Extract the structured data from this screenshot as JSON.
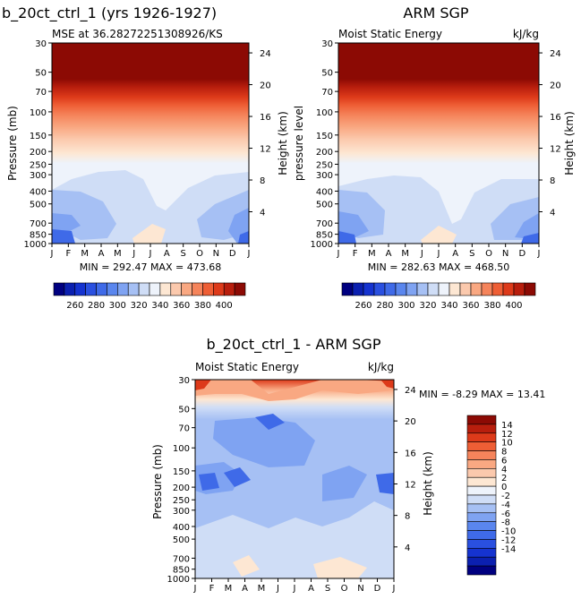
{
  "panels": [
    {
      "title": "b_20ct_ctrl_1 (yrs 1926-1927)",
      "left_label": "MSE at 36.28272251308926/KS",
      "right_label": "",
      "y_left_title": "Pressure (mb)",
      "y_right_title": "Height (km)",
      "minmax": "MIN = 292.47 MAX = 473.68"
    },
    {
      "title": "ARM SGP",
      "left_label": "Moist Static Energy",
      "right_label": "kJ/kg",
      "y_left_title": "pressure level",
      "y_right_title": "Height (km)",
      "minmax": "MIN = 282.63 MAX = 468.50"
    },
    {
      "title": "b_20ct_ctrl_1 - ARM SGP",
      "left_label": "Moist Static Energy",
      "right_label": "kJ/kg",
      "y_left_title": "Pressure (mb)",
      "y_right_title": "Height (km)",
      "minmax": "MIN =  -8.29 MAX =  13.41"
    }
  ],
  "colors": {
    "bluered": [
      "#000080",
      "#0b20b0",
      "#1533d0",
      "#2a50e0",
      "#3f6ae8",
      "#5a86ee",
      "#7fa3f2",
      "#a6c0f4",
      "#cfddf6",
      "#eef3fb",
      "#fde7d3",
      "#fbc9ad",
      "#f9a882",
      "#f5845b",
      "#ee5e35",
      "#dd3a1a",
      "#b81e0d",
      "#8c0a04"
    ]
  },
  "chart_data": [
    {
      "type": "heatmap",
      "title": "b_20ct_ctrl_1 (yrs 1926-1927)",
      "subtitle": "MSE at 36.28272251308926/KS",
      "xlabel": "",
      "ylabel": "Pressure (mb)",
      "ylabel_right": "Height (km)",
      "x_ticks": [
        "J",
        "F",
        "M",
        "A",
        "M",
        "J",
        "J",
        "A",
        "S",
        "O",
        "N",
        "D",
        "J"
      ],
      "y_ticks": [
        "30",
        "50",
        "70",
        "100",
        "150",
        "200",
        "250",
        "300",
        "400",
        "500",
        "700",
        "850",
        "1000"
      ],
      "y_right_ticks": [
        "24",
        "20",
        "16",
        "12",
        "8",
        "4"
      ],
      "min": 292.47,
      "max": 473.68,
      "colorbar_labels": [
        "260",
        "280",
        "300",
        "320",
        "340",
        "360",
        "380",
        "400"
      ],
      "profile_pressure": [
        30,
        50,
        70,
        100,
        150,
        200,
        250,
        300,
        400,
        500,
        700,
        850,
        1000
      ],
      "values_jan": [
        470,
        420,
        380,
        355,
        340,
        332,
        326,
        322,
        318,
        314,
        308,
        304,
        300
      ],
      "values_jul": [
        470,
        425,
        385,
        360,
        345,
        338,
        336,
        336,
        334,
        330,
        326,
        328,
        334
      ]
    },
    {
      "type": "heatmap",
      "title": "ARM SGP",
      "subtitle": "Moist Static Energy",
      "units": "kJ/kg",
      "xlabel": "",
      "ylabel": "pressure level",
      "ylabel_right": "Height (km)",
      "x_ticks": [
        "J",
        "F",
        "M",
        "A",
        "M",
        "J",
        "J",
        "A",
        "S",
        "O",
        "N",
        "D",
        "J"
      ],
      "y_ticks": [
        "30",
        "50",
        "70",
        "100",
        "150",
        "200",
        "250",
        "300",
        "400",
        "500",
        "700",
        "850",
        "1000"
      ],
      "y_right_ticks": [
        "24",
        "20",
        "16",
        "12",
        "8",
        "4"
      ],
      "min": 282.63,
      "max": 468.5,
      "colorbar_labels": [
        "260",
        "280",
        "300",
        "320",
        "340",
        "360",
        "380",
        "400"
      ],
      "profile_pressure": [
        30,
        50,
        70,
        100,
        150,
        200,
        250,
        300,
        400,
        500,
        700,
        850,
        1000
      ],
      "values_jan": [
        465,
        420,
        380,
        355,
        338,
        330,
        324,
        320,
        315,
        310,
        302,
        298,
        292
      ],
      "values_jul": [
        465,
        425,
        385,
        360,
        344,
        338,
        336,
        335,
        333,
        330,
        328,
        330,
        336
      ]
    },
    {
      "type": "heatmap",
      "title": "b_20ct_ctrl_1 - ARM SGP",
      "subtitle": "Moist Static Energy",
      "units": "kJ/kg",
      "xlabel": "",
      "ylabel": "Pressure (mb)",
      "ylabel_right": "Height (km)",
      "x_ticks": [
        "J",
        "F",
        "M",
        "A",
        "M",
        "J",
        "J",
        "A",
        "S",
        "O",
        "N",
        "D",
        "J"
      ],
      "y_ticks": [
        "30",
        "50",
        "70",
        "100",
        "150",
        "200",
        "250",
        "300",
        "400",
        "500",
        "700",
        "850",
        "1000"
      ],
      "y_right_ticks": [
        "24",
        "20",
        "16",
        "12",
        "8",
        "4"
      ],
      "min": -8.29,
      "max": 13.41,
      "colorbar_labels": [
        "14",
        "12",
        "10",
        "8",
        "6",
        "4",
        "2",
        "0",
        "-2",
        "-4",
        "-6",
        "-8",
        "-10",
        "-12",
        "-14"
      ]
    }
  ]
}
